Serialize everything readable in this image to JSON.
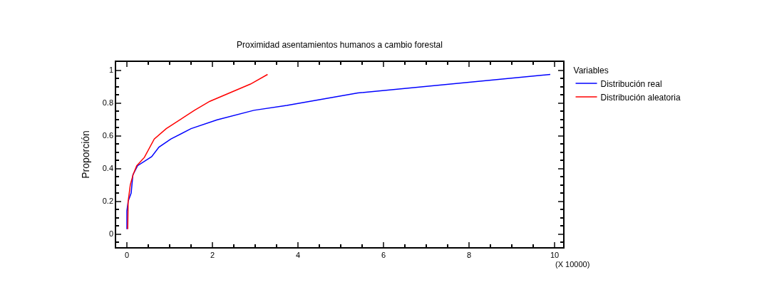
{
  "chart_data": {
    "type": "line",
    "title": "Proximidad asentamientos humanos a cambio forestal",
    "ylabel": "Proporción",
    "legend_title": "Variables",
    "legend": "right",
    "marker": "none",
    "line_style": "solid",
    "xlim": [
      -0.25,
      10.2
    ],
    "xticks": [
      0,
      2,
      4,
      6,
      8,
      10
    ],
    "ylim": [
      -0.08,
      1.05
    ],
    "yticks": [
      0,
      0.2,
      0.4,
      0.6,
      0.8,
      1
    ],
    "annotations": [
      "(X 10000)"
    ],
    "series": [
      {
        "name": "Distribución real",
        "color": "#0000ff",
        "x": [
          0,
          0,
          0.03,
          0.1,
          0.14,
          0.25,
          0.58,
          0.75,
          1.03,
          1.5,
          2.11,
          2.97,
          3.74,
          5.4,
          9.9
        ],
        "values": [
          0.03,
          0.14,
          0.2,
          0.25,
          0.36,
          0.417,
          0.472,
          0.53,
          0.58,
          0.643,
          0.697,
          0.755,
          0.785,
          0.861,
          0.974
        ]
      },
      {
        "name": "Distribución aleatoria",
        "color": "#ff0000",
        "x": [
          0.02,
          0.03,
          0.08,
          0.15,
          0.23,
          0.41,
          0.64,
          0.92,
          1.58,
          1.94,
          2.89,
          3.29
        ],
        "values": [
          0.03,
          0.2,
          0.3,
          0.366,
          0.417,
          0.468,
          0.58,
          0.643,
          0.755,
          0.81,
          0.915,
          0.974
        ]
      }
    ]
  }
}
